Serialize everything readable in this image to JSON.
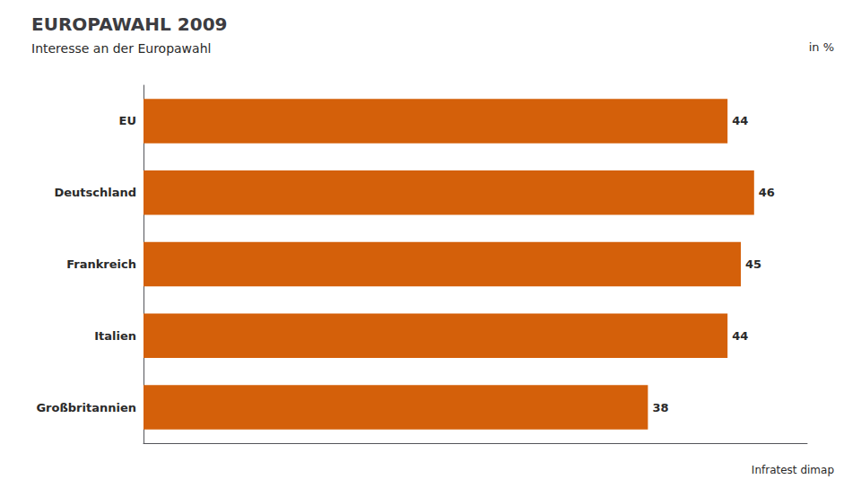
{
  "chart_data": {
    "type": "bar",
    "orientation": "horizontal",
    "title": "EUROPAWAHL 2009",
    "subtitle": "Interesse an der Europawahl",
    "annotations": [
      "in %",
      "Infratest dimap"
    ],
    "categories": [
      "EU",
      "Deutschland",
      "Frankreich",
      "Italien",
      "Großbritannien"
    ],
    "values": [
      44,
      46,
      45,
      44,
      38
    ],
    "color": "#d4600a",
    "xlim": [
      0,
      50
    ],
    "grid": false,
    "data_labels": true,
    "tick_labels": "y"
  }
}
